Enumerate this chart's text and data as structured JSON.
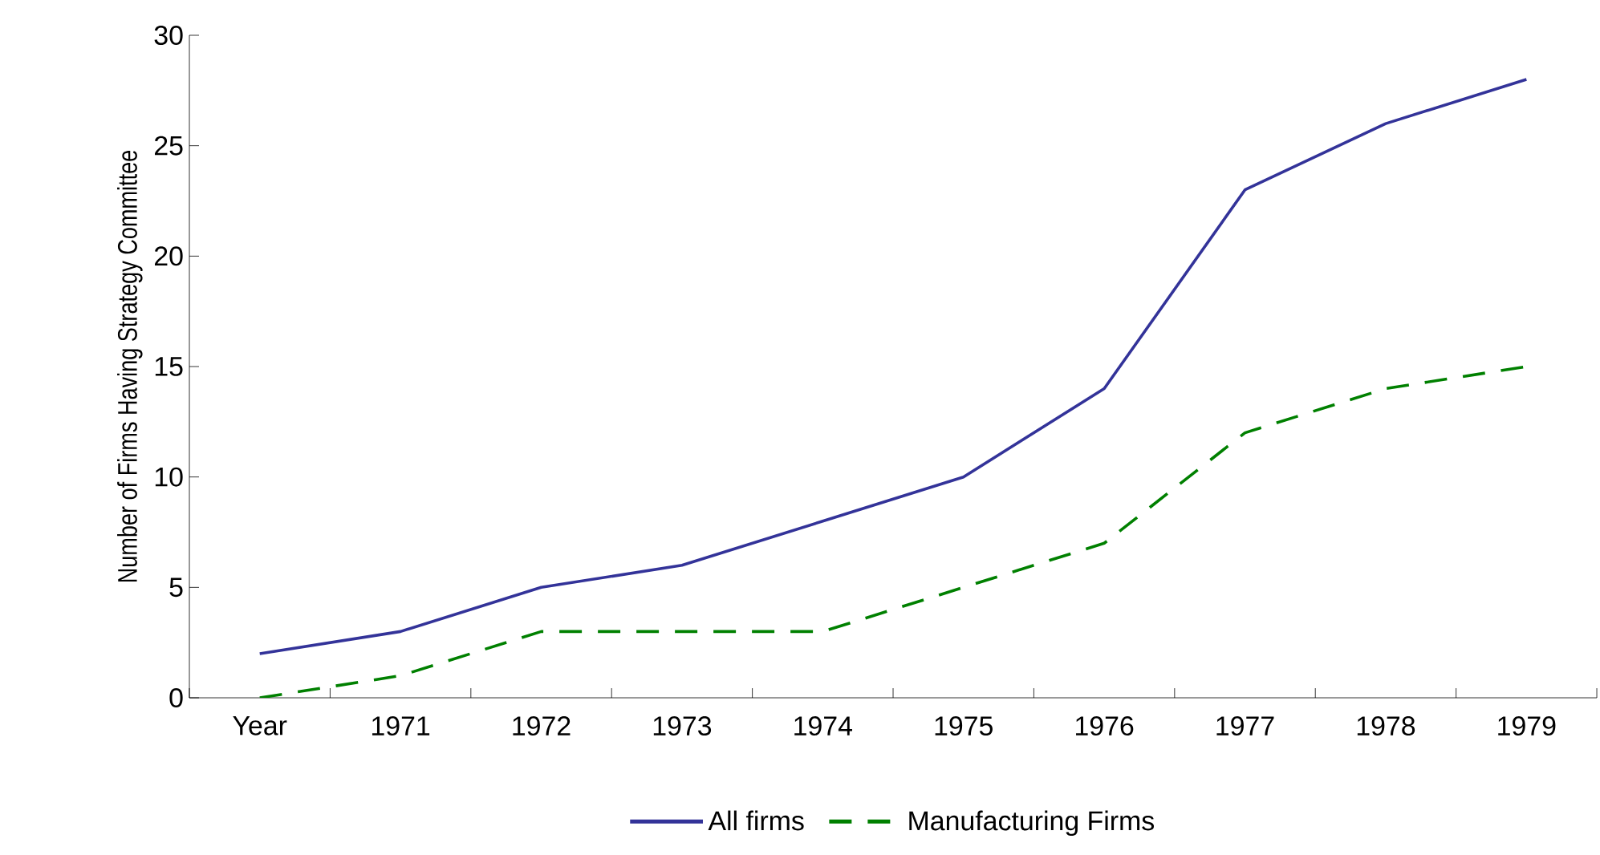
{
  "chart_data": {
    "type": "line",
    "ylabel": "Number of Firms Having Strategy Committee",
    "categories": [
      "Year",
      "1971",
      "1972",
      "1973",
      "1974",
      "1975",
      "1976",
      "1977",
      "1978",
      "1979"
    ],
    "series": [
      {
        "name": "All firms",
        "color": "#333399",
        "line_style": "solid",
        "values": [
          2,
          3,
          5,
          6,
          8,
          10,
          14,
          23,
          26,
          28
        ]
      },
      {
        "name": "Manufacturing Firms",
        "color": "#008000",
        "line_style": "dashed",
        "values": [
          0,
          1,
          3,
          3,
          3,
          5,
          7,
          12,
          14,
          15
        ]
      }
    ],
    "ylim": [
      0,
      30
    ],
    "yticks": [
      0,
      5,
      10,
      15,
      20,
      25,
      30
    ],
    "grid": false,
    "legend": "bottom",
    "marker": "none"
  }
}
